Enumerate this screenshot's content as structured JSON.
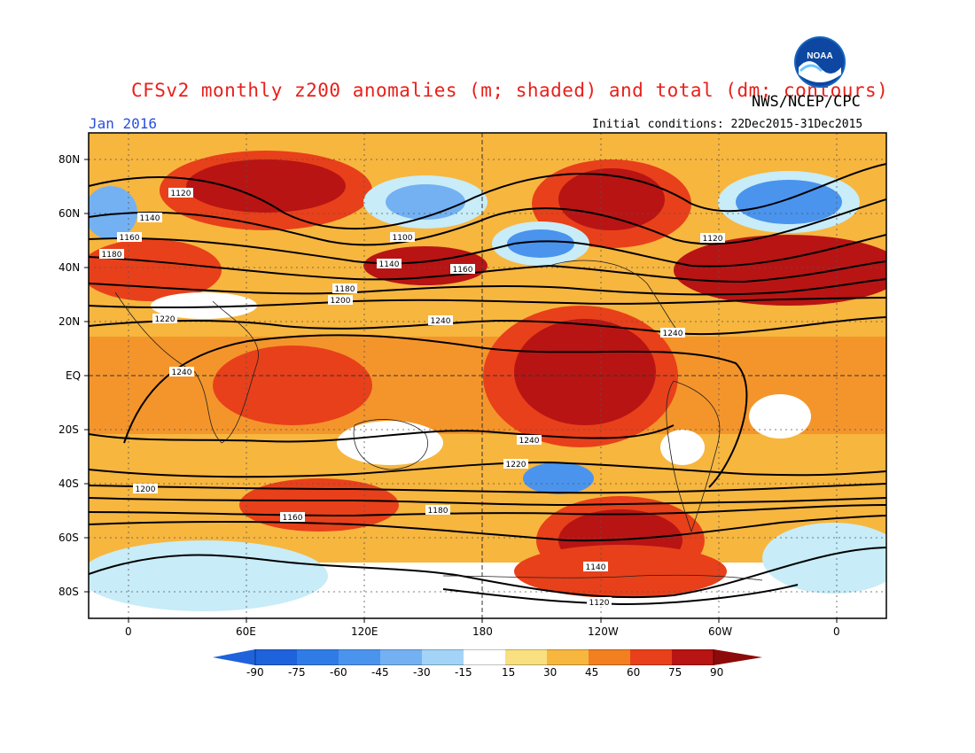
{
  "header": {
    "title": "CFSv2 monthly z200 anomalies (m; shaded) and total (dm; contours)",
    "agency": "NWS/NCEP/CPC",
    "month": "Jan 2016",
    "initial_conditions": "Initial conditions: 22Dec2015-31Dec2015",
    "logo_icon": "noaa-logo-icon"
  },
  "axes": {
    "lat_labels": [
      "80N",
      "60N",
      "40N",
      "20N",
      "EQ",
      "20S",
      "40S",
      "60S",
      "80S"
    ],
    "lon_labels": [
      "0",
      "60E",
      "120E",
      "180",
      "120W",
      "60W",
      "0"
    ]
  },
  "colorbar": {
    "levels": [
      "-90",
      "-75",
      "-60",
      "-45",
      "-30",
      "-15",
      "15",
      "30",
      "45",
      "60",
      "75",
      "90"
    ],
    "colors": [
      "#1e62dc",
      "#2f7ce6",
      "#4a94ee",
      "#74b1f2",
      "#a3d4f7",
      "#c8ecf8",
      "#ffffff",
      "#f9df80",
      "#f7b63e",
      "#f27f20",
      "#e8401a",
      "#b81414",
      "#8c0a0a"
    ]
  },
  "contour_labels": [
    "1120",
    "1140",
    "1160",
    "1180",
    "1100",
    "1120",
    "1140",
    "1160",
    "1180",
    "1200",
    "1220",
    "1240",
    "1240",
    "1240",
    "1240",
    "1220",
    "1200",
    "1180",
    "1160",
    "1140",
    "1120"
  ]
}
